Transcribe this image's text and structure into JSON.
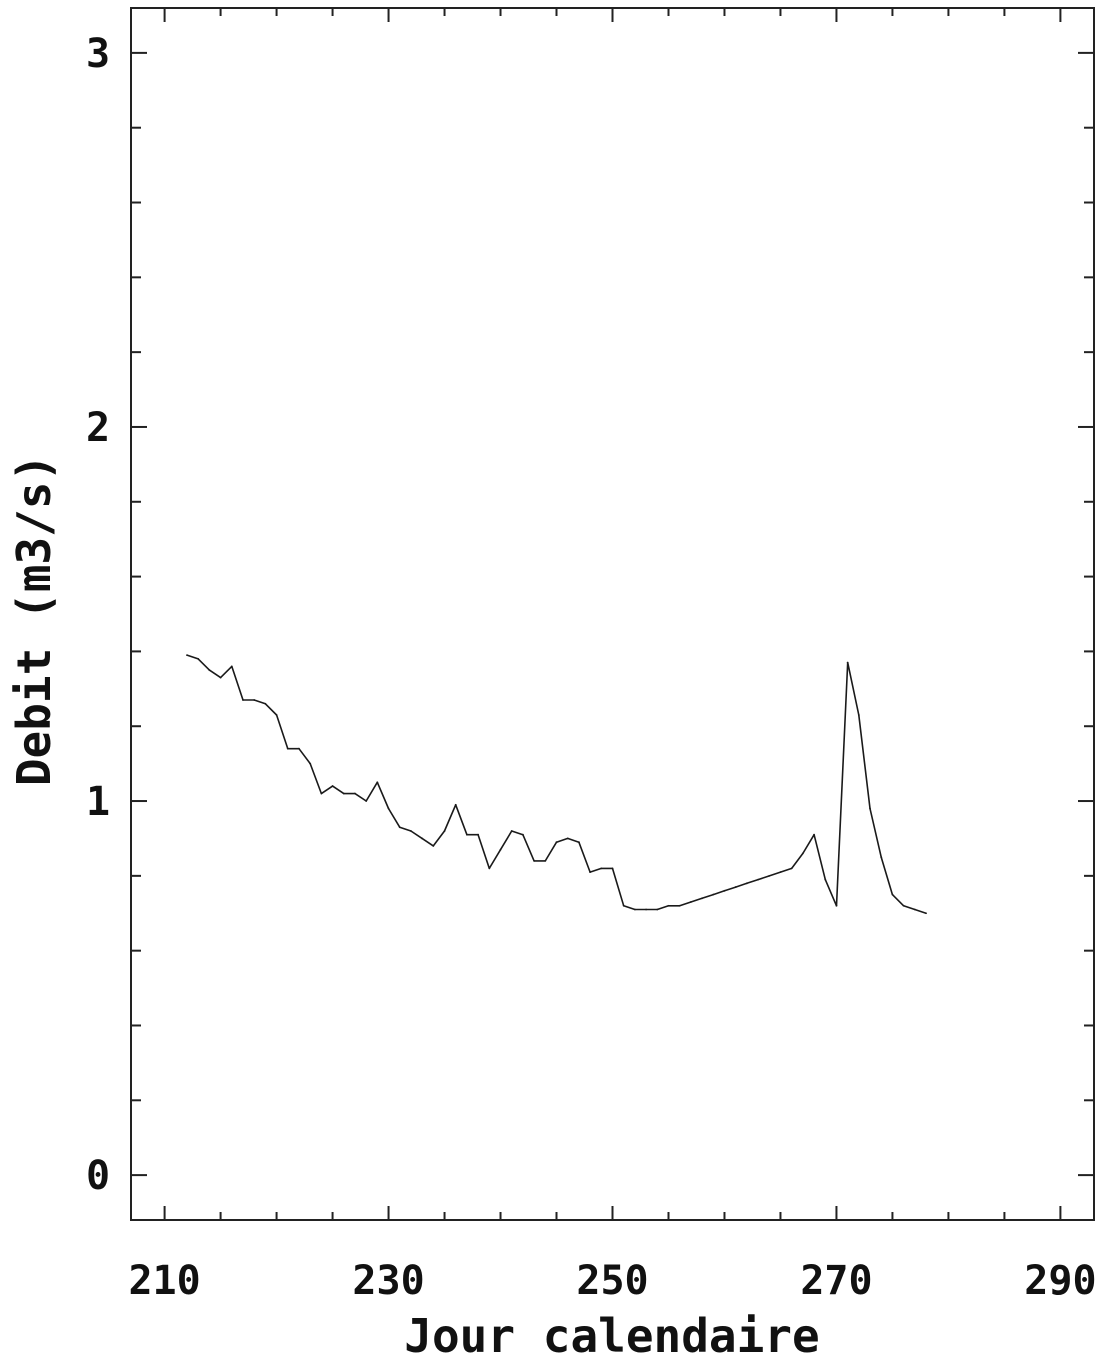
{
  "chart_data": {
    "type": "line",
    "title": "",
    "xlabel": "Jour calendaire",
    "ylabel": "Debit (m3/s)",
    "xlim": [
      207,
      293
    ],
    "ylim": [
      -0.12,
      3.12
    ],
    "x_ticks": [
      210,
      230,
      250,
      270,
      290
    ],
    "x_tick_labels": [
      "210",
      "230",
      "250",
      "270",
      "290"
    ],
    "y_ticks": [
      0,
      1,
      2,
      3
    ],
    "y_tick_labels": [
      "0",
      "1",
      "2",
      "3"
    ],
    "grid": false,
    "series": [
      {
        "color": "#1a1a1a",
        "x": [
          212,
          213,
          214,
          215,
          216,
          217,
          218,
          219,
          220,
          221,
          222,
          223,
          224,
          225,
          226,
          227,
          228,
          229,
          230,
          231,
          232,
          233,
          234,
          235,
          236,
          237,
          238,
          239,
          240,
          241,
          242,
          243,
          244,
          245,
          246,
          247,
          248,
          249,
          250,
          251,
          252,
          253,
          254,
          255,
          256,
          257,
          258,
          259,
          260,
          261,
          262,
          263,
          264,
          265,
          266,
          267,
          268,
          269,
          270,
          271,
          272,
          273,
          274,
          275,
          276,
          277,
          278
        ],
        "y": [
          1.39,
          1.38,
          1.35,
          1.33,
          1.36,
          1.27,
          1.27,
          1.26,
          1.23,
          1.14,
          1.14,
          1.1,
          1.02,
          1.04,
          1.02,
          1.02,
          1.0,
          1.05,
          0.98,
          0.93,
          0.92,
          0.9,
          0.88,
          0.92,
          0.99,
          0.91,
          0.91,
          0.82,
          0.87,
          0.92,
          0.91,
          0.84,
          0.84,
          0.89,
          0.9,
          0.89,
          0.81,
          0.82,
          0.82,
          0.72,
          0.71,
          0.71,
          0.71,
          0.72,
          0.72,
          0.73,
          0.74,
          0.75,
          0.76,
          0.77,
          0.78,
          0.79,
          0.8,
          0.81,
          0.82,
          0.86,
          0.91,
          0.79,
          0.72,
          1.37,
          1.23,
          0.98,
          0.85,
          0.75,
          0.72,
          0.71,
          0.7
        ]
      }
    ]
  }
}
